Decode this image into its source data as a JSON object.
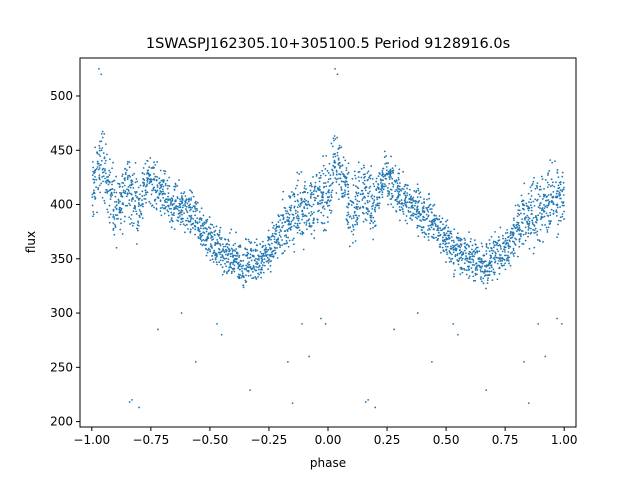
{
  "chart_data": {
    "type": "scatter",
    "title": "1SWASPJ162305.10+305100.5 Period 9128916.0s",
    "xlabel": "phase",
    "ylabel": "flux",
    "xlim": [
      -1.05,
      1.05
    ],
    "ylim": [
      195,
      535
    ],
    "xticks": [
      -1.0,
      -0.75,
      -0.5,
      -0.25,
      0.0,
      0.25,
      0.5,
      0.75,
      1.0
    ],
    "xtick_labels": [
      "−1.00",
      "−0.75",
      "−0.50",
      "−0.25",
      "0.00",
      "0.25",
      "0.50",
      "0.75",
      "1.00"
    ],
    "yticks": [
      200,
      250,
      300,
      350,
      400,
      450,
      500
    ],
    "ytick_labels": [
      "200",
      "250",
      "300",
      "350",
      "400",
      "450",
      "500"
    ],
    "grid": false,
    "legend": "none",
    "marker_color": "#1f77b4",
    "series": [
      {
        "x": [
          -1.0,
          -0.98,
          -0.96,
          -0.94,
          -0.92,
          -0.9,
          -0.88,
          -0.86,
          -0.84,
          -0.82,
          -0.8,
          -0.78,
          -0.76,
          -0.74,
          -0.72,
          -0.7,
          -0.68,
          -0.66,
          -0.64,
          -0.62,
          -0.6,
          -0.58,
          -0.56,
          -0.54,
          -0.52,
          -0.5,
          -0.48,
          -0.46,
          -0.44,
          -0.42,
          -0.4,
          -0.38,
          -0.36,
          -0.34,
          -0.32,
          -0.3,
          -0.28,
          -0.26,
          -0.24,
          -0.22,
          -0.2,
          -0.18,
          -0.16,
          -0.14,
          -0.12,
          -0.1,
          -0.08,
          -0.06,
          -0.04,
          -0.02,
          0.0,
          0.02,
          0.04,
          0.06,
          0.08,
          0.1,
          0.12,
          0.14,
          0.16,
          0.18,
          0.2,
          0.22,
          0.24,
          0.26,
          0.28,
          0.3,
          0.32,
          0.34,
          0.36,
          0.38,
          0.4,
          0.42,
          0.44,
          0.46,
          0.48,
          0.5,
          0.52,
          0.54,
          0.56,
          0.58,
          0.6,
          0.62,
          0.64,
          0.66,
          0.68,
          0.7,
          0.72,
          0.74,
          0.76,
          0.78,
          0.8,
          0.82,
          0.84,
          0.86,
          0.88,
          0.9,
          0.92,
          0.94,
          0.96,
          0.98,
          1.0
        ],
        "y": [
          405,
          425,
          440,
          430,
          410,
          395,
          400,
          420,
          410,
          405,
          400,
          415,
          425,
          420,
          415,
          410,
          405,
          400,
          398,
          395,
          392,
          390,
          385,
          378,
          372,
          368,
          362,
          358,
          355,
          352,
          350,
          348,
          345,
          346,
          348,
          350,
          352,
          355,
          360,
          368,
          375,
          382,
          388,
          392,
          395,
          398,
          400,
          402,
          405,
          408,
          410,
          425,
          440,
          430,
          410,
          395,
          400,
          420,
          410,
          405,
          400,
          415,
          425,
          420,
          415,
          410,
          405,
          400,
          398,
          395,
          392,
          390,
          385,
          378,
          372,
          368,
          362,
          358,
          355,
          352,
          350,
          348,
          345,
          346,
          348,
          350,
          352,
          355,
          360,
          368,
          375,
          382,
          388,
          392,
          395,
          398,
          400,
          402,
          405,
          408,
          410
        ]
      }
    ],
    "outliers": {
      "x": [
        -0.97,
        -0.96,
        -0.84,
        -0.83,
        -0.8,
        -0.72,
        -0.62,
        -0.56,
        -0.47,
        -0.45,
        -0.33,
        -0.17,
        -0.15,
        -0.11,
        -0.08,
        -0.03,
        -0.01,
        0.03,
        0.04,
        0.16,
        0.17,
        0.2,
        0.28,
        0.38,
        0.44,
        0.53,
        0.55,
        0.67,
        0.83,
        0.85,
        0.89,
        0.92,
        0.97,
        0.99
      ],
      "y": [
        525,
        520,
        218,
        220,
        213,
        285,
        300,
        255,
        290,
        280,
        229,
        255,
        217,
        290,
        260,
        295,
        290,
        525,
        520,
        218,
        220,
        213,
        285,
        300,
        255,
        290,
        280,
        229,
        255,
        217,
        290,
        260,
        295,
        290
      ]
    }
  }
}
